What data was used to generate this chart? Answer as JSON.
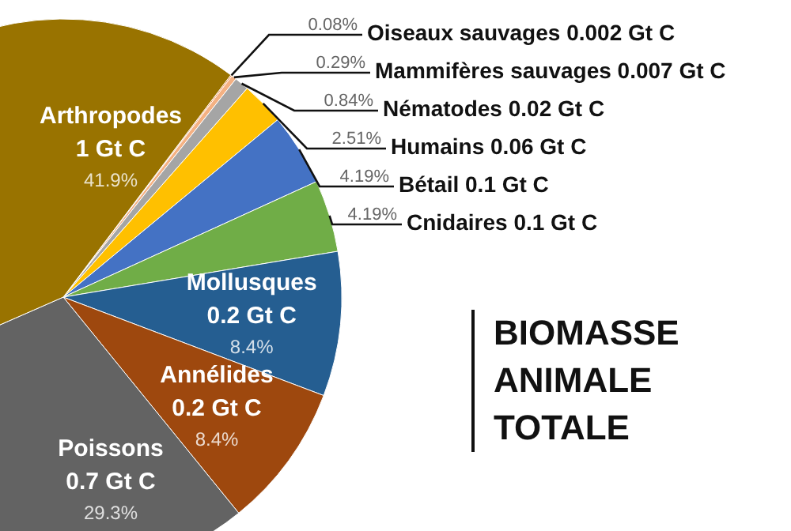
{
  "chart_data": {
    "type": "pie",
    "title": "BIOMASSE ANIMALE TOTALE",
    "categories": [
      "Oiseaux sauvages 0.002 Gt C",
      "Mammifères sauvages 0.007 Gt C",
      "Nématodes 0.02 Gt C",
      "Humains 0.06 Gt C",
      "Bétail 0.1 Gt C",
      "Cnidaires 0.1 Gt C",
      "Mollusques 0.2 Gt C",
      "Annélides 0.2 Gt C",
      "Poissons 0.7 Gt C",
      "Arthropodes 1 Gt C"
    ],
    "values": [
      0.08,
      0.29,
      0.84,
      2.51,
      4.19,
      4.19,
      8.4,
      8.4,
      29.3,
      41.9
    ],
    "value_labels": [
      "0.08%",
      "0.29%",
      "0.84%",
      "2.51%",
      "4.19%",
      "4.19%",
      "8.4%",
      "8.4%",
      "29.3%",
      "41.9%"
    ],
    "colors": [
      "#ed7d31",
      "#f4b183",
      "#a5a5a5",
      "#ffc000",
      "#4472c4",
      "#70ad47",
      "#255e91",
      "#9e480e",
      "#636363",
      "#997300"
    ]
  }
}
